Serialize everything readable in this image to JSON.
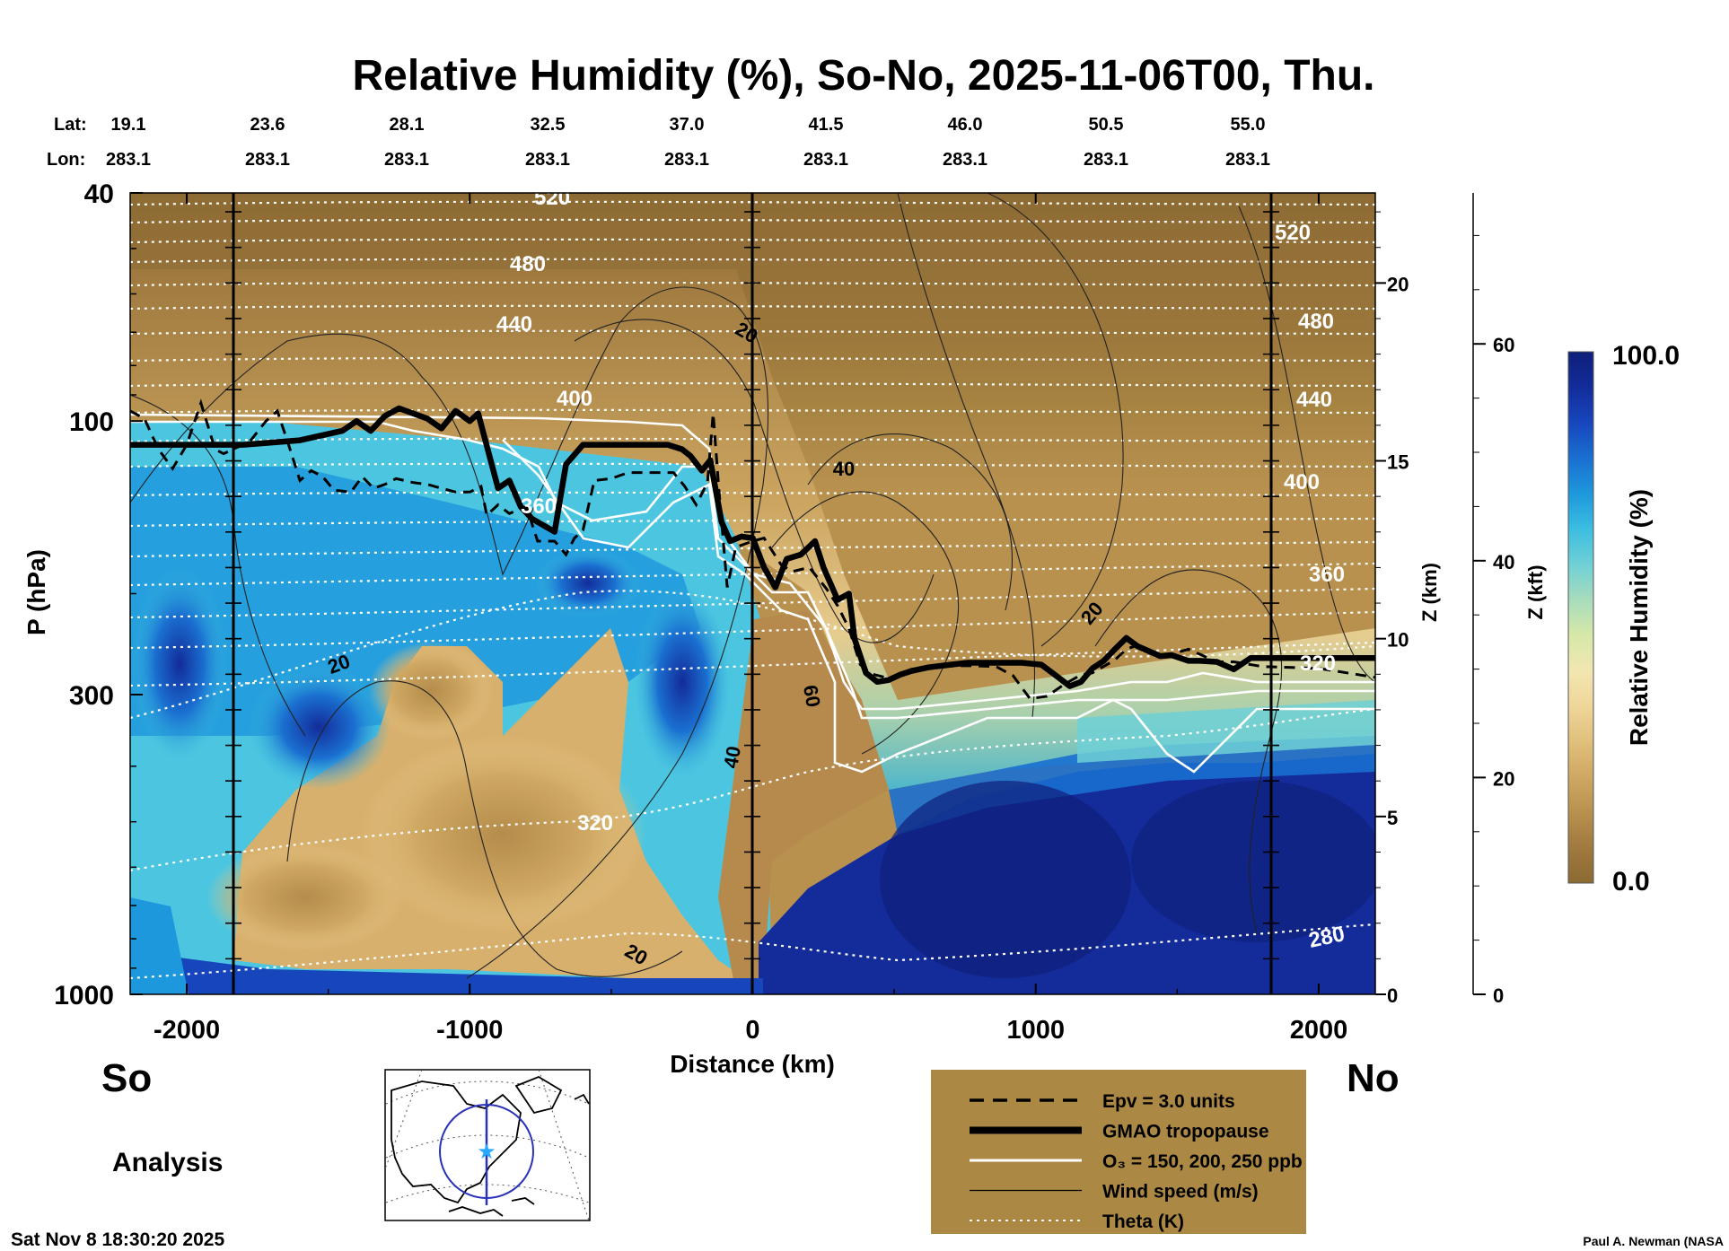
{
  "chart_data": {
    "type": "heatmap",
    "title": "Relative Humidity (%), So-No, 2025-11-06T00, Thu.",
    "xlabel": "Distance (km)",
    "ylabel": "P (hPa)",
    "z_km_label": "Z (km)",
    "z_kft_label": "Z (kft)",
    "xlim": [
      -2200,
      2200
    ],
    "ylim_hpa": [
      1000,
      40
    ],
    "x_ticks": [
      "-2000",
      "-1000",
      "0",
      "1000",
      "2000"
    ],
    "x_tick_values": [
      -2000,
      -1000,
      0,
      1000,
      2000
    ],
    "p_ticks": [
      "40",
      "100",
      "300",
      "1000"
    ],
    "p_tick_values": [
      40,
      100,
      300,
      1000
    ],
    "z_km_ticks": [
      "0",
      "5",
      "10",
      "15",
      "20"
    ],
    "z_kft_ticks": [
      "0",
      "20",
      "40",
      "60"
    ],
    "lat_label": "Lat:",
    "lon_label": "Lon:",
    "lats": [
      "19.1",
      "23.6",
      "28.1",
      "32.5",
      "37.0",
      "41.5",
      "46.0",
      "50.5",
      "55.0"
    ],
    "lons": [
      "283.1",
      "283.1",
      "283.1",
      "283.1",
      "283.1",
      "283.1",
      "283.1",
      "283.1",
      "283.1"
    ],
    "south_label": "So",
    "north_label": "No",
    "analysis_label": "Analysis",
    "colorbar": {
      "label": "Relative Humidity (%)",
      "max": "100.0",
      "min": "0.0",
      "colors": [
        "#8b6a32",
        "#a07a3f",
        "#b8914f",
        "#cfa863",
        "#e0c07c",
        "#efd69a",
        "#f2e7b0",
        "#d6e8a8",
        "#a8dcbc",
        "#6fd0d6",
        "#3cbde0",
        "#1e98dc",
        "#1a6fd0",
        "#1746bc",
        "#132c9a",
        "#0f1f7a"
      ]
    },
    "theta_labels": [
      "520",
      "480",
      "440",
      "400",
      "360",
      "320",
      "280"
    ],
    "theta_right_labels": [
      "520",
      "480",
      "440",
      "400",
      "360",
      "320"
    ],
    "wind_labels": [
      "20",
      "40",
      "20",
      "60",
      "40",
      "20",
      "20"
    ],
    "tropopause": {
      "name": "GMAO tropopause",
      "x": [
        -2200,
        -1800,
        -1600,
        -1450,
        -1400,
        -1350,
        -1300,
        -1250,
        -1150,
        -1100,
        -1050,
        -1000,
        -970,
        -900,
        -860,
        -820,
        -780,
        -700,
        -660,
        -600,
        -560,
        -400,
        -300,
        -250,
        -220,
        -180,
        -150,
        -110,
        -80,
        -40,
        0,
        40,
        80,
        120,
        170,
        220,
        250,
        300,
        340,
        360,
        400,
        440,
        480,
        520,
        560,
        620,
        700,
        760,
        820,
        880,
        950,
        1020,
        1080,
        1120,
        1160,
        1200,
        1240,
        1280,
        1320,
        1360,
        1440,
        1480,
        1540,
        1580,
        1640,
        1700,
        1760,
        1820,
        2200
      ],
      "p": [
        110,
        110,
        108,
        104,
        100,
        104,
        98,
        95,
        99,
        103,
        96,
        100,
        97,
        131,
        127,
        141,
        148,
        156,
        119,
        110,
        110,
        110,
        110,
        112,
        115,
        122,
        117,
        150,
        162,
        159,
        160,
        180,
        195,
        174,
        171,
        162,
        180,
        205,
        200,
        240,
        275,
        285,
        283,
        277,
        273,
        269,
        266,
        264,
        264,
        264,
        264,
        266,
        280,
        290,
        285,
        270,
        262,
        250,
        239,
        247,
        257,
        256,
        262,
        262,
        263,
        271,
        259,
        259,
        259
      ]
    },
    "epv": {
      "name": "Epv = 3.0 units",
      "x": [
        -2200,
        -2150,
        -2100,
        -2050,
        -2000,
        -1950,
        -1900,
        -1870,
        -1820,
        -1780,
        -1720,
        -1680,
        -1640,
        -1600,
        -1560,
        -1520,
        -1480,
        -1420,
        -1380,
        -1340,
        -1300,
        -1260,
        -1200,
        -1150,
        -1100,
        -1050,
        -1000,
        -960,
        -940,
        -900,
        -860,
        -800,
        -760,
        -700,
        -660,
        -630,
        -600,
        -560,
        -500,
        -440,
        -360,
        -280,
        -240,
        -200,
        -160,
        -140,
        -120,
        -90,
        -60,
        0,
        40,
        100,
        140,
        200,
        260,
        300,
        340,
        380,
        420,
        480,
        560,
        640,
        760,
        860,
        920,
        980,
        1040,
        1100,
        1160,
        1200,
        1280,
        1320,
        1360,
        1420,
        1480,
        1540,
        1640,
        1700,
        1800,
        2000,
        2200
      ],
      "p": [
        96,
        99,
        112,
        121,
        110,
        93,
        112,
        114,
        111,
        109,
        100,
        96,
        110,
        127,
        122,
        125,
        132,
        133,
        125,
        131,
        129,
        126,
        128,
        129,
        131,
        133,
        133,
        130,
        146,
        140,
        145,
        141,
        162,
        162,
        171,
        160,
        155,
        127,
        126,
        123,
        123,
        123,
        130,
        140,
        128,
        97,
        131,
        195,
        166,
        162,
        160,
        178,
        183,
        180,
        196,
        210,
        230,
        266,
        276,
        281,
        271,
        268,
        267,
        268,
        278,
        305,
        302,
        288,
        277,
        275,
        261,
        250,
        246,
        256,
        255,
        250,
        263,
        263,
        268,
        270,
        280
      ]
    },
    "legend": [
      {
        "label": "Epv = 3.0 units",
        "style": "dashed"
      },
      {
        "label": "GMAO tropopause",
        "style": "thick"
      },
      {
        "label": "O₃ = 150, 200, 250 ppb",
        "style": "white"
      },
      {
        "label": "Wind speed (m/s)",
        "style": "thin"
      },
      {
        "label": "Theta (K)",
        "style": "dotted"
      }
    ]
  },
  "timestamp": "Sat Nov  8 18:30:20 2025",
  "credit": "Paul A. Newman (NASA",
  "colors": {
    "legend_bg": "#ab8843",
    "ocean": "#ffffff",
    "track": "#2a32b8"
  }
}
